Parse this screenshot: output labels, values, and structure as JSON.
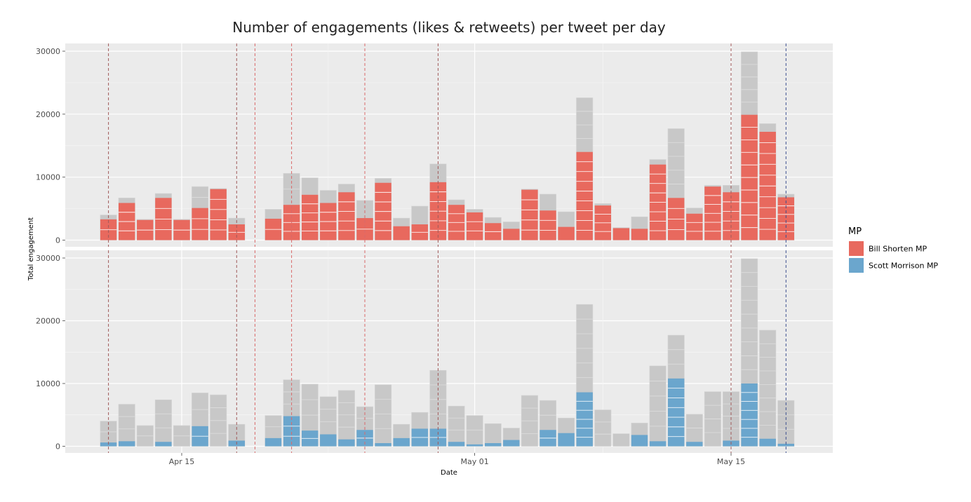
{
  "chart_data": {
    "type": "bar",
    "title": "Number of engagements (likes & retweets) per tweet per day",
    "xlabel": "Date",
    "ylabel": "Total engagement",
    "ylim": [
      0,
      30000
    ],
    "yticks": [
      "0",
      "10000",
      "20000",
      "30000"
    ],
    "xticks": [
      {
        "label": "Apr 15",
        "date": "2019-04-15"
      },
      {
        "label": "May 01",
        "date": "2019-05-01"
      },
      {
        "label": "May 15",
        "date": "2019-05-15"
      }
    ],
    "dates": [
      "2019-04-11",
      "2019-04-12",
      "2019-04-13",
      "2019-04-14",
      "2019-04-15",
      "2019-04-16",
      "2019-04-17",
      "2019-04-18",
      "2019-04-20",
      "2019-04-21",
      "2019-04-22",
      "2019-04-23",
      "2019-04-24",
      "2019-04-25",
      "2019-04-26",
      "2019-04-27",
      "2019-04-28",
      "2019-04-29",
      "2019-04-30",
      "2019-05-01",
      "2019-05-02",
      "2019-05-03",
      "2019-05-04",
      "2019-05-05",
      "2019-05-06",
      "2019-05-07",
      "2019-05-08",
      "2019-05-09",
      "2019-05-10",
      "2019-05-11",
      "2019-05-12",
      "2019-05-13",
      "2019-05-14",
      "2019-05-15",
      "2019-05-16",
      "2019-05-17",
      "2019-05-18"
    ],
    "totals": [
      4000,
      6700,
      3300,
      7400,
      3300,
      8500,
      8200,
      3500,
      4900,
      10600,
      9900,
      7900,
      8900,
      6300,
      9800,
      3500,
      5400,
      12100,
      6400,
      4900,
      3600,
      2900,
      8100,
      7300,
      4500,
      22600,
      5800,
      2000,
      3700,
      12800,
      17700,
      5100,
      8700,
      8700,
      29900,
      18500,
      7300
    ],
    "grid": true,
    "legend_position": "right",
    "vlines": [
      {
        "date": "2019-04-11",
        "color": "#a05a5a"
      },
      {
        "date": "2019-04-18",
        "color": "#a05a5a"
      },
      {
        "date": "2019-04-19",
        "color": "#d9696a"
      },
      {
        "date": "2019-04-21",
        "color": "#d9696a"
      },
      {
        "date": "2019-04-25",
        "color": "#d9696a"
      },
      {
        "date": "2019-04-29",
        "color": "#a05a5a"
      },
      {
        "date": "2019-05-15",
        "color": "#a05a5a"
      },
      {
        "date": "2019-05-18",
        "color": "#3c4f8f"
      }
    ],
    "legend_title": "MP",
    "series": [
      {
        "name": "Bill Shorten MP",
        "color": "#e8695e",
        "values": [
          3300,
          5900,
          3200,
          6700,
          3200,
          5100,
          8100,
          2500,
          3400,
          5600,
          7200,
          5900,
          7600,
          3500,
          9100,
          2200,
          2500,
          9200,
          5600,
          4400,
          2700,
          1800,
          8000,
          4700,
          2100,
          14000,
          5500,
          1900,
          1800,
          12000,
          6700,
          4200,
          8500,
          7600,
          19900,
          17200,
          6800
        ]
      },
      {
        "name": "Scott Morrison MP",
        "color": "#6ba6cd",
        "values": [
          600,
          800,
          0,
          700,
          0,
          3200,
          0,
          900,
          1300,
          4800,
          2500,
          1900,
          1100,
          2600,
          500,
          1300,
          2800,
          2800,
          700,
          300,
          500,
          1000,
          0,
          2600,
          2100,
          8600,
          0,
          0,
          1800,
          800,
          10800,
          700,
          0,
          900,
          10000,
          1200,
          400
        ]
      }
    ]
  }
}
